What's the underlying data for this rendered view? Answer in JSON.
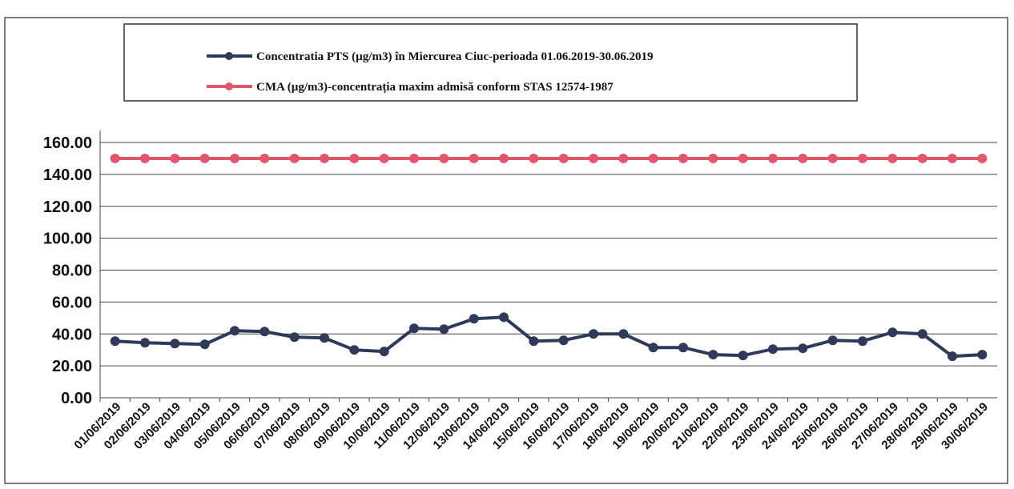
{
  "chart_data": {
    "type": "line",
    "categories": [
      "01/06/2019",
      "02/06/2019",
      "03/06/2019",
      "04/06/2019",
      "05/06/2019",
      "06/06/2019",
      "07/06/2019",
      "08/06/2019",
      "09/06/2019",
      "10/06/2019",
      "11/06/2019",
      "12/06/2019",
      "13/06/2019",
      "14/06/2019",
      "15/06/2019",
      "16/06/2019",
      "17/06/2019",
      "18/06/2019",
      "19/06/2019",
      "20/06/2019",
      "21/06/2019",
      "22/06/2019",
      "23/06/2019",
      "24/06/2019",
      "25/06/2019",
      "26/06/2019",
      "27/06/2019",
      "28/06/2019",
      "29/06/2019",
      "30/06/2019"
    ],
    "series": [
      {
        "name": "Concentratia PTS (µg/m3) în Miercurea Ciuc-perioada 01.06.2019-30.06.2019",
        "color": "#2e3a57",
        "values": [
          35.5,
          34.5,
          34,
          33.5,
          42,
          41.5,
          38,
          37.5,
          30,
          29,
          43.5,
          43,
          49.5,
          50.5,
          35.5,
          36,
          40,
          40,
          31.5,
          31.5,
          27,
          26.5,
          30.5,
          31,
          36,
          35.5,
          41,
          40,
          26,
          27
        ]
      },
      {
        "name": "CMA (µg/m3)-concentrația maxim admisă conform STAS 12574-1987",
        "color": "#e0566a",
        "values": [
          150,
          150,
          150,
          150,
          150,
          150,
          150,
          150,
          150,
          150,
          150,
          150,
          150,
          150,
          150,
          150,
          150,
          150,
          150,
          150,
          150,
          150,
          150,
          150,
          150,
          150,
          150,
          150,
          150,
          150
        ]
      }
    ],
    "ylim": [
      0,
      160
    ],
    "yticks": [
      {
        "value": 0,
        "label": "0.00"
      },
      {
        "value": 20,
        "label": "20.00"
      },
      {
        "value": 40,
        "label": "40.00"
      },
      {
        "value": 60,
        "label": "60.00"
      },
      {
        "value": 80,
        "label": "80.00"
      },
      {
        "value": 100,
        "label": "100.00"
      },
      {
        "value": 120,
        "label": "120.00"
      },
      {
        "value": 140,
        "label": "140.00"
      },
      {
        "value": 160,
        "label": "160.00"
      }
    ],
    "grid": true
  }
}
